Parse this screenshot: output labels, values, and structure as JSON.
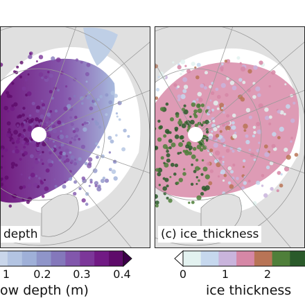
{
  "panels": [
    {
      "label": "depth",
      "variable": "snow_depth"
    },
    {
      "label": "(c) ice_thickness",
      "variable": "ice_thickness"
    }
  ],
  "colorbars": [
    {
      "label": "ow depth (m)",
      "ticks": [
        "1",
        "0.2",
        "0.3",
        "0.4"
      ],
      "extend": "max",
      "colors": [
        "#c9d6ea",
        "#b3c4e2",
        "#9fb0d8",
        "#8f95c9",
        "#8478bb",
        "#8257ac",
        "#7c3799",
        "#711a84",
        "#5e0b6a"
      ]
    },
    {
      "label": "ice thickness",
      "ticks": [
        "0",
        "1",
        "2"
      ],
      "extend": "min",
      "colors": [
        "#e3f2f0",
        "#c6d8ee",
        "#c9b4dc",
        "#d687a6",
        "#b87456",
        "#4f7f3a",
        "#2a5a2a"
      ]
    }
  ],
  "colors": {
    "land": "#e0e0e0",
    "ocean": "#ffffff",
    "grid": "#9a9a9a",
    "snow_base": "#7f4fa8",
    "snow_dark": "#6a0f78",
    "ice_pink": "#d88aa8",
    "ice_green": "#2d5a2d"
  }
}
